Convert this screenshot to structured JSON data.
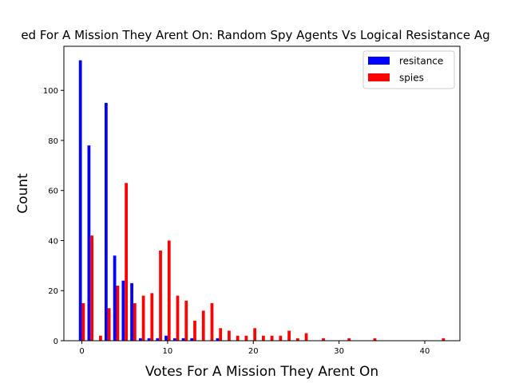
{
  "chart_data": {
    "type": "bar",
    "title": "ed For A Mission They Arent On: Random Spy Agents Vs Logical Resistance Ag",
    "xlabel": "Votes For A Mission They Arent On",
    "ylabel": "Count",
    "xlim": [
      -2.1,
      44.1
    ],
    "ylim": [
      0,
      117.6
    ],
    "xticks": [
      0,
      10,
      20,
      30,
      40
    ],
    "yticks": [
      0,
      20,
      40,
      60,
      80,
      100
    ],
    "legend_position": "top-right",
    "series": [
      {
        "name": "resitance",
        "color": "#0000ff",
        "x": [
          0,
          1,
          2,
          3,
          4,
          5,
          6,
          7,
          8,
          9,
          10,
          11,
          12,
          13,
          14,
          15,
          16
        ],
        "values": [
          112,
          78,
          0,
          95,
          34,
          24,
          23,
          1,
          1,
          1,
          2,
          1,
          1,
          1,
          0,
          0,
          1
        ]
      },
      {
        "name": "spies",
        "color": "#ff0000",
        "x": [
          0,
          1,
          2,
          3,
          4,
          5,
          6,
          7,
          8,
          9,
          10,
          11,
          12,
          13,
          14,
          15,
          16,
          17,
          18,
          19,
          20,
          21,
          22,
          23,
          24,
          25,
          26,
          28,
          31,
          34,
          42
        ],
        "values": [
          15,
          42,
          2,
          13,
          22,
          63,
          15,
          18,
          19,
          36,
          40,
          18,
          16,
          8,
          12,
          15,
          5,
          4,
          2,
          2,
          5,
          2,
          2,
          2,
          4,
          1,
          3,
          1,
          1,
          1,
          1
        ]
      }
    ]
  }
}
